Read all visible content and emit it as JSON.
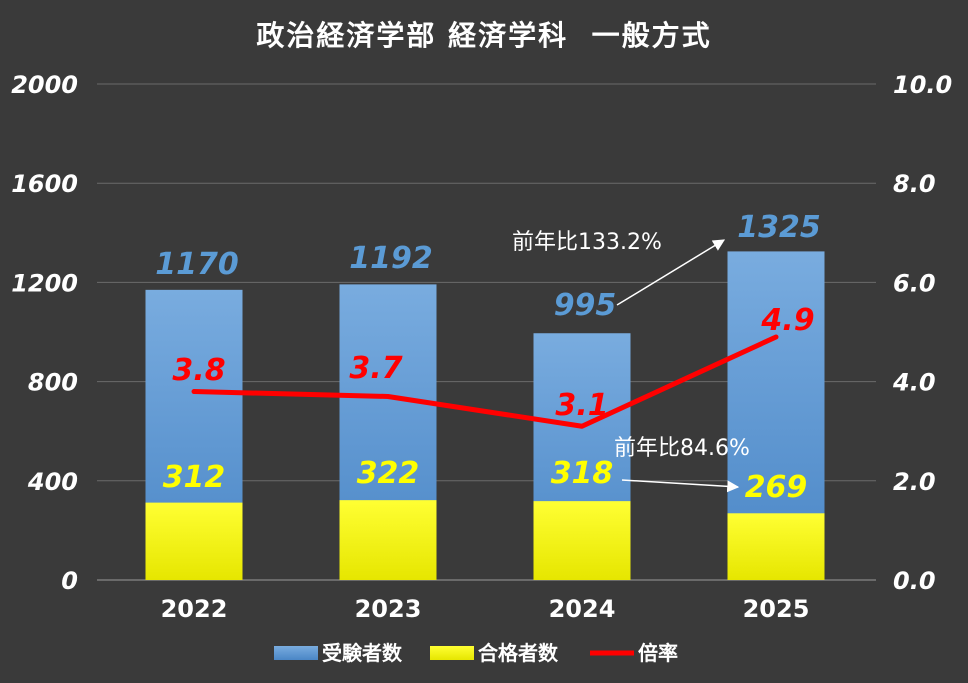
{
  "chart_data": {
    "type": "bar",
    "title": "政治経済学部 経済学科  一般方式",
    "categories": [
      "2022",
      "2023",
      "2024",
      "2025"
    ],
    "series": [
      {
        "name": "受験者数",
        "type": "bar",
        "axis": "left",
        "color": "#5b9bd5",
        "values": [
          1170,
          1192,
          995,
          1325
        ]
      },
      {
        "name": "合格者数",
        "type": "bar",
        "axis": "left",
        "color": "#ffff00",
        "values": [
          312,
          322,
          318,
          269
        ]
      },
      {
        "name": "倍率",
        "type": "line",
        "axis": "right",
        "color": "#ff0000",
        "values": [
          3.8,
          3.7,
          3.1,
          4.9
        ]
      }
    ],
    "y_left": {
      "range": [
        0,
        2000
      ],
      "ticks": [
        "0",
        "400",
        "800",
        "1200",
        "1600",
        "2000"
      ]
    },
    "y_right": {
      "range": [
        0,
        10
      ],
      "ticks": [
        "0.0",
        "2.0",
        "4.0",
        "6.0",
        "8.0",
        "10.0"
      ]
    },
    "annotations": [
      {
        "text": "前年比133.2%",
        "target": "受験者数 2025"
      },
      {
        "text": "前年比84.6%",
        "target": "合格者数 2025"
      }
    ],
    "grid": true,
    "legend": "bottom"
  }
}
